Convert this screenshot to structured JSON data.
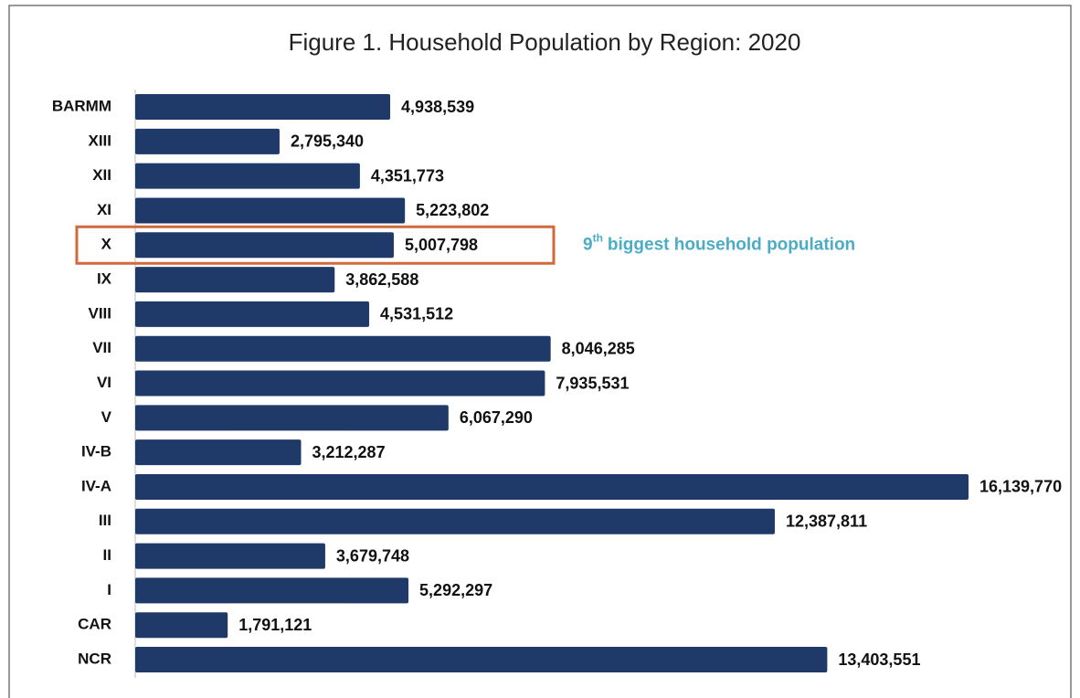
{
  "chart_data": {
    "type": "bar",
    "orientation": "horizontal",
    "title": "Figure 1. Household Population by Region: 2020",
    "categories": [
      "BARMM",
      "XIII",
      "XII",
      "XI",
      "X",
      "IX",
      "VIII",
      "VII",
      "VI",
      "V",
      "IV-B",
      "IV-A",
      "III",
      "II",
      "I",
      "CAR",
      "NCR"
    ],
    "values": [
      4938539,
      2795340,
      4351773,
      5223802,
      5007798,
      3862588,
      4531512,
      8046285,
      7935531,
      6067290,
      3212287,
      16139770,
      12387811,
      3679748,
      5292297,
      1791121,
      13403551
    ],
    "value_labels": [
      "4,938,539",
      "2,795,340",
      "4,351,773",
      "5,223,802",
      "5,007,798",
      "3,862,588",
      "4,531,512",
      "8,046,285",
      "7,935,531",
      "6,067,290",
      "3,212,287",
      "16,139,770",
      "12,387,811",
      "3,679,748",
      "5,292,297",
      "1,791,121",
      "13,403,551"
    ],
    "color": "#1f3a68",
    "highlight": "X",
    "highlight_color": "#d2693c",
    "annotation": [
      "9",
      "th",
      "biggest household population"
    ],
    "annotation_color": "#4bacc6"
  }
}
